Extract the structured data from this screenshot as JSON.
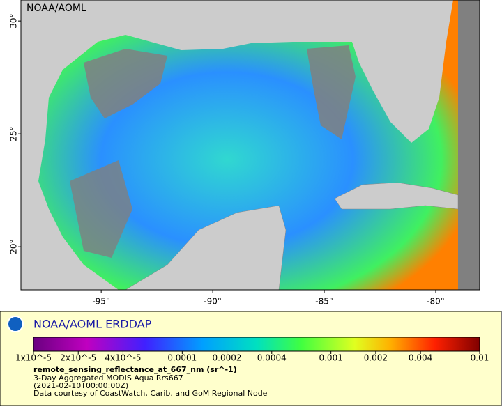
{
  "map": {
    "watermark": "NOAA/AOML",
    "xlim": [
      -98.6,
      -78.03
    ],
    "ylim": [
      18.09,
      30.93
    ],
    "lat_ticks": [
      {
        "value": 30,
        "label": "30°"
      },
      {
        "value": 25,
        "label": "25°"
      },
      {
        "value": 20,
        "label": "20°"
      }
    ],
    "lon_ticks": [
      {
        "value": -95,
        "label": "-95°"
      },
      {
        "value": -90,
        "label": "-90°"
      },
      {
        "value": -85,
        "label": "-85°"
      },
      {
        "value": -80,
        "label": "-80°"
      }
    ]
  },
  "legend": {
    "brand": "NOAA/AOML ERDDAP",
    "scale": "log",
    "range": [
      1e-05,
      0.01
    ],
    "ticks": [
      {
        "value": 1e-05,
        "label": "1x10^-5"
      },
      {
        "value": 2e-05,
        "label": "2x10^-5"
      },
      {
        "value": 4e-05,
        "label": "4x10^-5"
      },
      0.0001,
      0.0002,
      0.0004,
      0.001,
      0.002,
      0.004,
      0.01
    ],
    "variable": "remote_sensing_reflectance_at_667_nm (sr^-1)",
    "lines": [
      "3-Day Aggregated MODIS Aqua Rrs667",
      "(2021-02-10T00:00:00Z)",
      "Data courtesy of CoastWatch, Carib. and GoM Regional Node"
    ]
  }
}
